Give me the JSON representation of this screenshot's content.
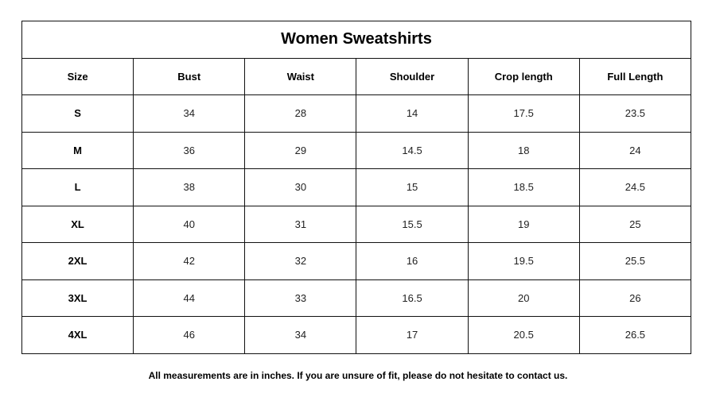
{
  "title": "Women Sweatshirts",
  "columns": [
    "Size",
    "Bust",
    "Waist",
    "Shoulder",
    "Crop length",
    "Full Length"
  ],
  "rows": [
    [
      "S",
      "34",
      "28",
      "14",
      "17.5",
      "23.5"
    ],
    [
      "M",
      "36",
      "29",
      "14.5",
      "18",
      "24"
    ],
    [
      "L",
      "38",
      "30",
      "15",
      "18.5",
      "24.5"
    ],
    [
      "XL",
      "40",
      "31",
      "15.5",
      "19",
      "25"
    ],
    [
      "2XL",
      "42",
      "32",
      "16",
      "19.5",
      "25.5"
    ],
    [
      "3XL",
      "44",
      "33",
      "16.5",
      "20",
      "26"
    ],
    [
      "4XL",
      "46",
      "34",
      "17",
      "20.5",
      "26.5"
    ]
  ],
  "footnote": "All measurements are in inches. If you are unsure of fit, please do not hesitate to contact us."
}
